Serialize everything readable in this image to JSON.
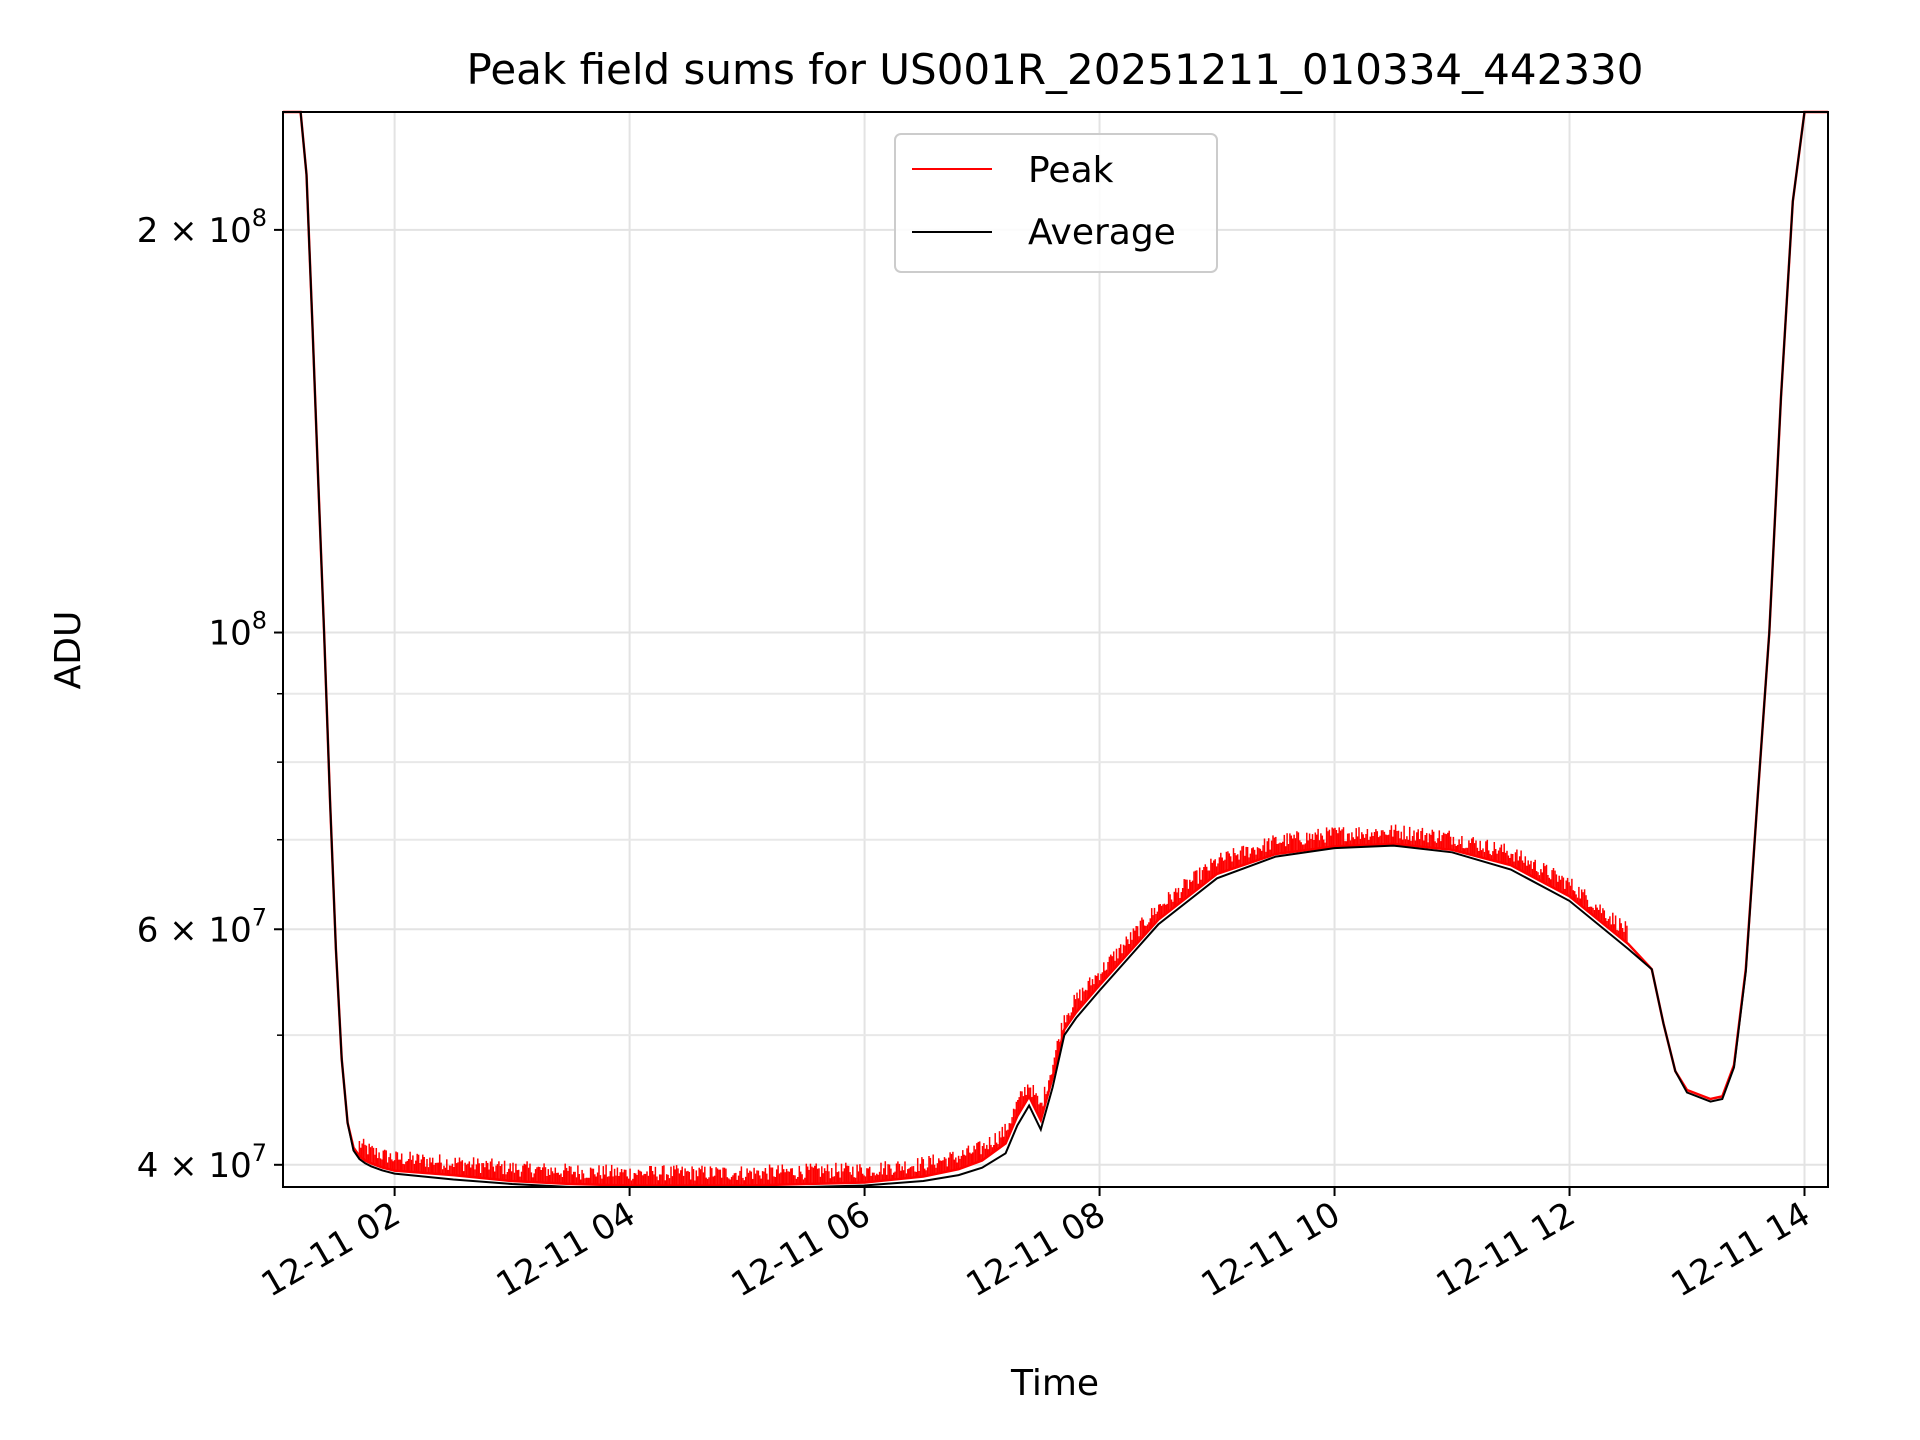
{
  "chart_data": {
    "type": "line",
    "title": "Peak field sums for US001R_20251211_010334_442330",
    "xlabel": "Time",
    "ylabel": "ADU",
    "yscale": "log",
    "xlim_hours": [
      1.05,
      14.2
    ],
    "ylim": [
      38500000,
      245000000
    ],
    "grid": true,
    "legend_position": "top-center",
    "x_tick_labels": [
      "12-11 02",
      "12-11 04",
      "12-11 06",
      "12-11 08",
      "12-11 10",
      "12-11 12",
      "12-11 14"
    ],
    "x_tick_hours": [
      2,
      4,
      6,
      8,
      10,
      12,
      14
    ],
    "y_tick_labels": [
      {
        "value": 40000000,
        "mantissa": "4",
        "base": "10",
        "exp": "7"
      },
      {
        "value": 60000000,
        "mantissa": "6",
        "base": "10",
        "exp": "7"
      },
      {
        "value": 100000000,
        "mantissa": "",
        "base": "10",
        "exp": "8"
      },
      {
        "value": 200000000,
        "mantissa": "2",
        "base": "10",
        "exp": "8"
      }
    ],
    "y_minor_values": [
      50000000,
      70000000,
      80000000,
      90000000,
      300000000
    ],
    "series": [
      {
        "name": "Peak",
        "color": "#ff0000",
        "x_hours": [
          1.05,
          1.2,
          1.25,
          1.3,
          1.35,
          1.4,
          1.45,
          1.5,
          1.55,
          1.6,
          1.65,
          1.7,
          1.75,
          1.8,
          1.9,
          2.0,
          2.5,
          3.0,
          3.5,
          4.0,
          4.5,
          5.0,
          5.5,
          6.0,
          6.5,
          6.8,
          7.0,
          7.2,
          7.3,
          7.4,
          7.5,
          7.6,
          7.7,
          7.8,
          8.0,
          8.5,
          9.0,
          9.5,
          10.0,
          10.5,
          11.0,
          11.5,
          12.0,
          12.5,
          12.7,
          12.8,
          12.9,
          13.0,
          13.2,
          13.3,
          13.4,
          13.5,
          13.6,
          13.7,
          13.8,
          13.9,
          14.0,
          14.2
        ],
        "values": [
          245000000,
          245000000,
          220000000,
          170000000,
          130000000,
          100000000,
          75000000,
          58000000,
          48000000,
          43000000,
          41200000,
          40600000,
          40300000,
          40100000,
          39800000,
          39600000,
          39300000,
          38900000,
          38700000,
          38600000,
          38600000,
          38600000,
          38700000,
          38800000,
          39200000,
          39700000,
          40300000,
          41500000,
          43500000,
          45000000,
          43200000,
          46500000,
          50500000,
          52000000,
          54500000,
          61000000,
          66000000,
          68300000,
          69200000,
          69500000,
          68800000,
          67000000,
          63500000,
          58500000,
          56000000,
          51000000,
          47000000,
          45500000,
          44800000,
          45000000,
          47500000,
          56000000,
          75000000,
          100000000,
          150000000,
          210000000,
          245000000,
          245000000
        ],
        "spikes_hours_range": [
          1.7,
          12.5
        ]
      },
      {
        "name": "Average",
        "color": "#000000",
        "x_hours": [
          1.05,
          1.2,
          1.25,
          1.3,
          1.35,
          1.4,
          1.45,
          1.5,
          1.55,
          1.6,
          1.65,
          1.7,
          1.75,
          1.8,
          1.9,
          2.0,
          2.5,
          3.0,
          3.5,
          4.0,
          4.5,
          5.0,
          5.5,
          6.0,
          6.5,
          6.8,
          7.0,
          7.2,
          7.3,
          7.4,
          7.5,
          7.6,
          7.7,
          7.8,
          8.0,
          8.5,
          9.0,
          9.5,
          10.0,
          10.5,
          11.0,
          11.5,
          12.0,
          12.5,
          12.7,
          12.8,
          12.9,
          13.0,
          13.2,
          13.3,
          13.4,
          13.5,
          13.6,
          13.7,
          13.8,
          13.9,
          14.0,
          14.2
        ],
        "values": [
          245000000,
          245000000,
          220000000,
          170000000,
          130000000,
          100000000,
          75000000,
          58000000,
          48000000,
          43000000,
          41000000,
          40400000,
          40100000,
          39900000,
          39600000,
          39400000,
          39000000,
          38700000,
          38500000,
          38400000,
          38400000,
          38400000,
          38500000,
          38600000,
          38900000,
          39300000,
          39800000,
          40800000,
          42800000,
          44300000,
          42500000,
          45700000,
          50000000,
          51500000,
          54000000,
          60500000,
          65500000,
          68000000,
          69000000,
          69300000,
          68500000,
          66500000,
          63000000,
          58000000,
          56000000,
          51000000,
          47000000,
          45300000,
          44600000,
          44800000,
          47300000,
          55800000,
          75000000,
          100000000,
          150000000,
          210000000,
          245000000,
          245000000
        ]
      }
    ]
  }
}
